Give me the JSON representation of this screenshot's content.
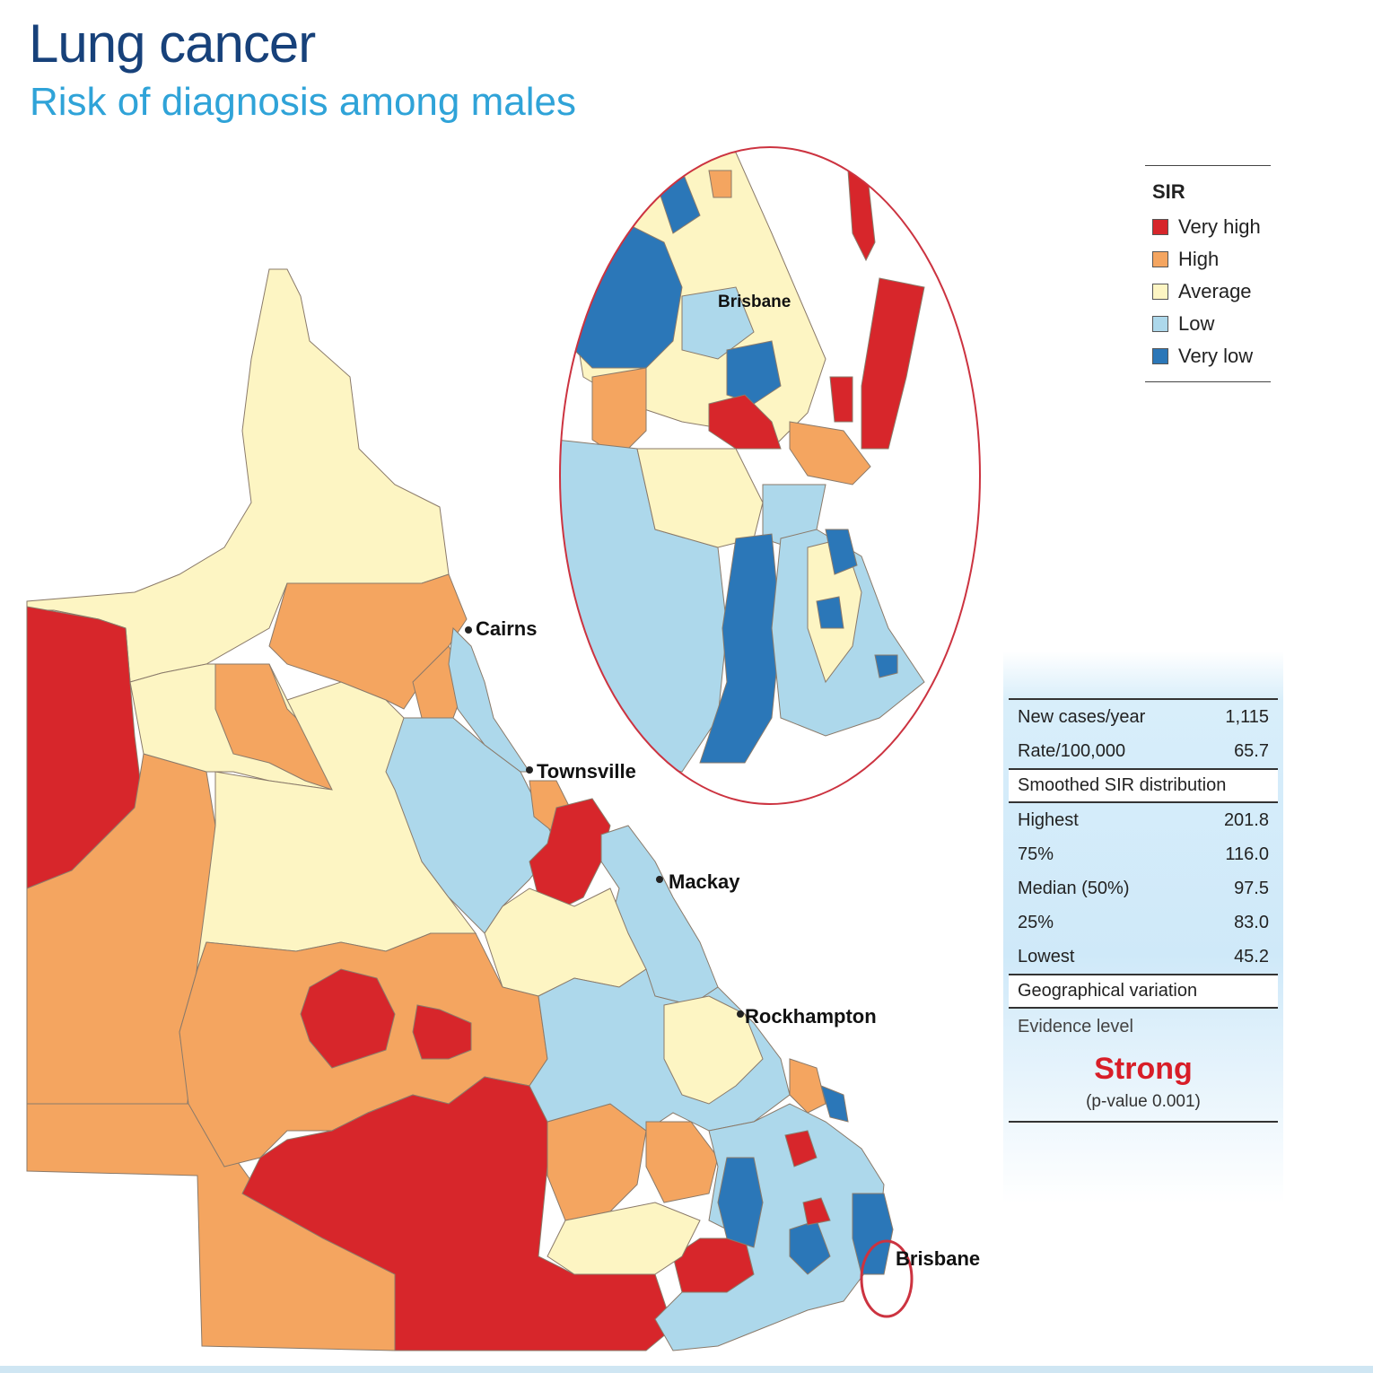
{
  "header": {
    "title": "Lung cancer",
    "subtitle": "Risk of diagnosis among males"
  },
  "colors": {
    "very_high": "#d7262b",
    "high": "#f4a560",
    "average": "#fdf5c3",
    "low": "#add8eb",
    "very_low": "#2b77b8",
    "title": "#17417a",
    "subtitle": "#2fa3d8",
    "inset_circle": "#cc3340"
  },
  "legend": {
    "title": "SIR",
    "items": [
      {
        "label": "Very high",
        "color": "#d7262b"
      },
      {
        "label": "High",
        "color": "#f4a560"
      },
      {
        "label": "Average",
        "color": "#fdf5c3"
      },
      {
        "label": "Low",
        "color": "#add8eb"
      },
      {
        "label": "Very low",
        "color": "#2b77b8"
      }
    ]
  },
  "map_labels": {
    "cairns": "Cairns",
    "townsville": "Townsville",
    "mackay": "Mackay",
    "rockhampton": "Rockhampton",
    "brisbane": "Brisbane",
    "inset_brisbane": "Brisbane"
  },
  "stats": {
    "new_cases_label": "New cases/year",
    "new_cases_value": "1,115",
    "rate_label": "Rate/100,000",
    "rate_value": "65.7",
    "distribution_header": "Smoothed SIR distribution",
    "highest_label": "Highest",
    "highest_value": "201.8",
    "p75_label": "75%",
    "p75_value": "116.0",
    "median_label": "Median (50%)",
    "median_value": "97.5",
    "p25_label": "25%",
    "p25_value": "83.0",
    "lowest_label": "Lowest",
    "lowest_value": "45.2",
    "variation_header": "Geographical variation",
    "evidence_label": "Evidence level",
    "evidence_value": "Strong",
    "pvalue": "(p-value 0.001)"
  }
}
